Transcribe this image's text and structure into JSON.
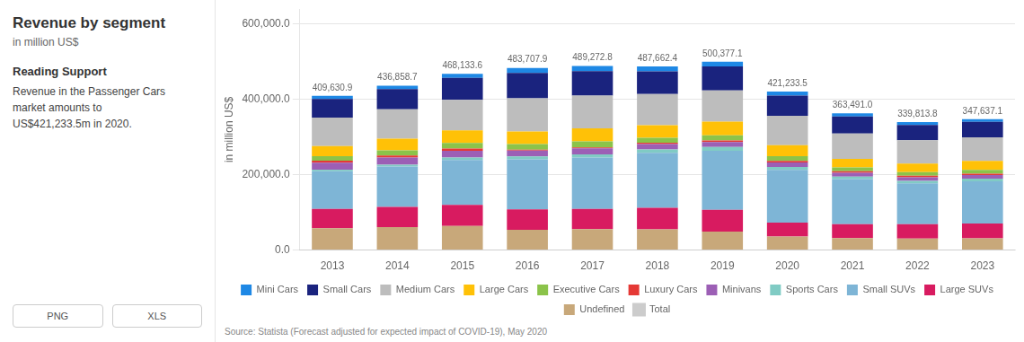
{
  "chart_data": {
    "type": "bar",
    "title": "Revenue by segment",
    "subtitle": "in million US$",
    "annotations": [
      "Reading Support",
      "Revenue in the Passenger Cars\nmarket amounts to\nUS$421,233.5m in 2020.",
      "PNG",
      "XLS",
      "Source: Statista (Forecast adjusted for expected impact of COVID-19), May 2020"
    ],
    "y_label": "in million US$",
    "categories": [
      "2013",
      "2014",
      "2015",
      "2016",
      "2017",
      "2018",
      "2019",
      "2020",
      "2021",
      "2022",
      "2023"
    ],
    "stacked": true,
    "grid": true,
    "legend": "bottom",
    "ylim": [
      0,
      640000
    ],
    "yticks": [
      {
        "value": 0,
        "label": "0.0"
      },
      {
        "value": 200000,
        "label": "200,000.0"
      },
      {
        "value": 400000,
        "label": "400,000.0"
      },
      {
        "value": 600000,
        "label": "600,000.0"
      }
    ],
    "series": [
      {
        "name": "Undefined",
        "color": "#c8a87a",
        "values": [
          57961.38,
          61293.95,
          64066.3,
          54121.16,
          55916.89,
          55165.43,
          49217.42,
          35849.66,
          31607.91,
          30532.35,
          31399.48
        ]
      },
      {
        "name": "Large SUVs",
        "color": "#d81b60",
        "values": [
          51273.53,
          53492.9,
          56198.51,
          54121.16,
          53680.22,
          57372.05,
          57967.18,
          36969.96,
          37252.18,
          38448.15,
          39249.35
        ]
      },
      {
        "name": "Small SUVs",
        "color": "#7eb5d6",
        "values": [
          100317.77,
          106985.8,
          119140.84,
          133047.86,
          136437.22,
          145636.73,
          156402.02,
          140037.73,
          119658.53,
          108559.48,
          112141
        ]
      },
      {
        "name": "Sports Cars",
        "color": "#80cbc4",
        "values": [
          3901.25,
          5014.96,
          6181.84,
          7328.91,
          8387.53,
          9378.12,
          10390.34,
          7842.11,
          6773.12,
          6219.55,
          6728.46
        ]
      },
      {
        "name": "Minivans",
        "color": "#9c5fb5",
        "values": [
          18948.91,
          18945.4,
          17983.52,
          15785.34,
          15656.73,
          14343.01,
          13124.65,
          12323.32,
          10159.69,
          9612.04,
          9531.985
        ]
      },
      {
        "name": "Luxury Cars",
        "color": "#e53935",
        "values": [
          5015.89,
          5572.18,
          6181.84,
          2255.05,
          2795.84,
          3309.93,
          3828.02,
          3921.06,
          3950.99,
          3957.9,
          3924.935
        ]
      },
      {
        "name": "Executive Cars",
        "color": "#8bc34a",
        "values": [
          12261.06,
          13373.23,
          14611.61,
          14657.82,
          15656.73,
          13239.7,
          14218.37,
          12323.32,
          10159.69,
          9612.04,
          10092.69
        ]
      },
      {
        "name": "Large Cars",
        "color": "#ffc107",
        "values": [
          26751.41,
          31204.19,
          33719.11,
          33825.73,
          34668.47,
          33099.26,
          36092.77,
          29127.85,
          22577.08,
          22616.56,
          23549.61
        ]
      },
      {
        "name": "Medium Cars",
        "color": "#bdbdbd",
        "values": [
          75795.65,
          78010.48,
          80925.86,
          87946.89,
          87230.35,
          82748.14,
          83122.75,
          78421.13,
          67731.24,
          62195.54,
          62798.96
        ]
      },
      {
        "name": "Small Cars",
        "color": "#1a237e",
        "values": [
          49044.24,
          53492.9,
          58446.45,
          67651.45,
          64863.59,
          60681.97,
          63435.79,
          53774.49,
          45154.16,
          40709.81,
          40931.465
        ]
      },
      {
        "name": "Mini Cars",
        "color": "#1e88e5",
        "values": [
          8359.81,
          9472.7,
          10677.72,
          12966.53,
          13979.22,
          12688.05,
          12577.79,
          10642.87,
          8466.41,
          7350.38,
          7289.165
        ]
      },
      {
        "name": "Total",
        "color": "#cccccc",
        "type": "line",
        "line_style": "none",
        "marker": "none",
        "data_labels": true,
        "values": [
          409630.9,
          436858.7,
          468133.6,
          483707.9,
          489272.8,
          487662.4,
          500377.1,
          421233.5,
          363491.0,
          339813.8,
          347637.1
        ],
        "value_labels": [
          "409,630.9",
          "436,858.7",
          "468,133.6",
          "483,707.9",
          "489,272.8",
          "487,662.4",
          "500,377.1",
          "421,233.5",
          "363,491.0",
          "339,813.8",
          "347,637.1"
        ]
      }
    ]
  }
}
